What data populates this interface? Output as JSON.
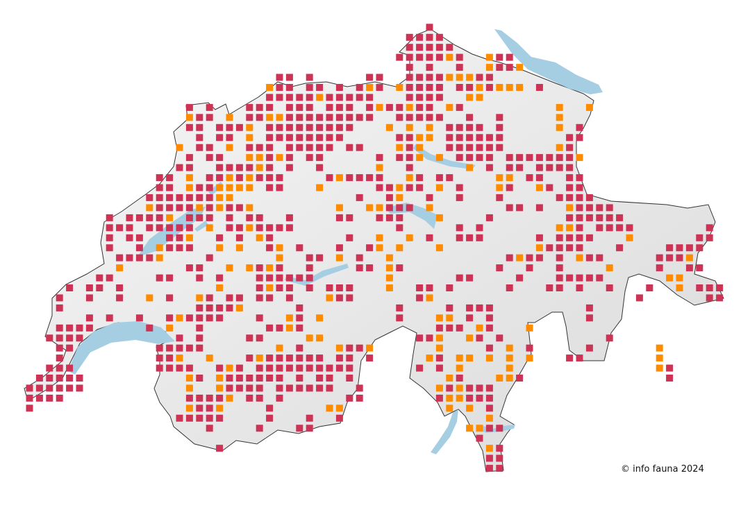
{
  "credit": "© info fauna 2024",
  "colors": {
    "red_square": "#cc3355",
    "orange_square": "#ff8c00",
    "lake": "#a6cee3",
    "country_fill": "#ececec",
    "border": "#333333"
  },
  "occurrence_grid": {
    "rows": [
      {
        "red": [
          40
        ],
        "orange": []
      },
      {
        "red": [
          38,
          39,
          40,
          41
        ],
        "orange": []
      },
      {
        "red": [
          38,
          39,
          40,
          41,
          42
        ],
        "orange": []
      },
      {
        "red": [
          37,
          38,
          39,
          40,
          41,
          43,
          47,
          48
        ],
        "orange": [
          42,
          46
        ]
      },
      {
        "red": [
          38,
          40,
          43,
          47,
          48
        ],
        "orange": [
          46,
          49
        ]
      },
      {
        "red": [
          25,
          26,
          28,
          34,
          35,
          38,
          39,
          40,
          41,
          45,
          46
        ],
        "orange": [
          42,
          43,
          44
        ]
      },
      {
        "red": [
          25,
          26,
          28,
          29,
          31,
          33,
          35,
          38,
          39,
          40,
          41,
          43,
          44,
          46,
          51
        ],
        "orange": [
          24,
          34,
          37,
          45,
          47,
          48,
          49
        ]
      },
      {
        "red": [
          24,
          25,
          26,
          27,
          28,
          30,
          31,
          32,
          33,
          34,
          38,
          39,
          40,
          41
        ],
        "orange": [
          29,
          44,
          45
        ]
      },
      {
        "red": [
          16,
          18,
          22,
          23,
          24,
          26,
          27,
          28,
          30,
          31,
          32,
          34,
          36,
          37,
          39,
          40,
          43
        ],
        "orange": [
          35,
          38,
          42,
          53,
          56
        ]
      },
      {
        "red": [
          17,
          18,
          22,
          23,
          26,
          27,
          28,
          29,
          30,
          31,
          32,
          33,
          34,
          37,
          38,
          39,
          40,
          41,
          44,
          47
        ],
        "orange": [
          16,
          20,
          24,
          25,
          53
        ]
      },
      {
        "red": [
          16,
          17,
          19,
          20,
          21,
          24,
          25,
          26,
          27,
          28,
          29,
          30,
          31,
          32,
          42,
          43,
          44,
          45,
          47,
          55
        ],
        "orange": [
          22,
          36,
          38,
          40,
          53
        ]
      },
      {
        "red": [
          17,
          19,
          20,
          24,
          25,
          26,
          27,
          28,
          29,
          30,
          31,
          37,
          38,
          42,
          43,
          44,
          45,
          46,
          47,
          54,
          55
        ],
        "orange": [
          22,
          39,
          40
        ]
      },
      {
        "red": [
          17,
          18,
          22,
          23,
          24,
          26,
          27,
          28,
          29,
          30,
          32,
          33,
          38,
          42,
          43,
          44,
          45,
          46,
          47,
          54
        ],
        "orange": [
          15,
          20,
          37,
          39,
          53
        ]
      },
      {
        "red": [
          16,
          18,
          19,
          24,
          26,
          28,
          29,
          35,
          37,
          38,
          43,
          44,
          45,
          46,
          48,
          49,
          50,
          51,
          52,
          53,
          54
        ],
        "orange": [
          22,
          23,
          25,
          39,
          41,
          55
        ]
      },
      {
        "red": [
          15,
          16,
          19,
          20,
          21,
          22,
          24,
          26,
          29,
          38,
          46,
          48,
          49,
          51,
          52,
          53,
          54
        ],
        "orange": [
          23,
          35,
          44
        ]
      },
      {
        "red": [
          13,
          14,
          18,
          19,
          21,
          23,
          24,
          25,
          30,
          32,
          33,
          34,
          35,
          39,
          41,
          42,
          50,
          51,
          54,
          55
        ],
        "orange": [
          16,
          20,
          22,
          31,
          38,
          47,
          48
        ]
      },
      {
        "red": [
          13,
          14,
          17,
          18,
          24,
          25,
          35,
          36,
          38,
          39,
          43,
          48,
          52,
          54,
          55
        ],
        "orange": [
          16,
          19,
          20,
          21,
          22,
          29,
          37,
          41,
          47,
          51
        ]
      },
      {
        "red": [
          12,
          13,
          14,
          15,
          16,
          17,
          18,
          33,
          36,
          40,
          43,
          47,
          53,
          54,
          55,
          56
        ],
        "orange": [
          19,
          20,
          37
        ]
      },
      {
        "red": [
          13,
          14,
          15,
          16,
          18,
          20,
          21,
          36,
          37,
          38,
          48,
          49,
          51,
          55,
          56,
          57,
          58
        ],
        "orange": [
          12,
          17,
          19,
          22,
          31,
          34,
          35,
          40,
          54
        ]
      },
      {
        "red": [
          8,
          10,
          11,
          12,
          13,
          16,
          17,
          18,
          20,
          22,
          23,
          26,
          31,
          32,
          35,
          36,
          37,
          46,
          54,
          55,
          56,
          57,
          58,
          59
        ],
        "orange": [
          14,
          41
        ]
      },
      {
        "red": [
          8,
          9,
          10,
          12,
          13,
          14,
          15,
          16,
          20,
          21,
          23,
          24,
          25,
          26,
          37,
          43,
          45,
          55,
          57,
          58,
          59,
          60,
          68
        ],
        "orange": [
          18,
          22,
          53,
          54
        ]
      },
      {
        "red": [
          8,
          10,
          11,
          14,
          15,
          19,
          21,
          24,
          32,
          40,
          43,
          44,
          45,
          51,
          53,
          54,
          55,
          56,
          67,
          68
        ],
        "orange": [
          16,
          23,
          35,
          38,
          60
        ]
      },
      {
        "red": [
          8,
          11,
          14,
          15,
          16,
          24,
          27,
          31,
          34,
          52,
          53,
          54,
          55,
          59,
          64,
          65,
          66,
          67
        ],
        "orange": [
          13,
          19,
          21,
          25,
          35,
          37,
          41,
          51
        ]
      },
      {
        "red": [
          9,
          10,
          11,
          12,
          18,
          28,
          29,
          33,
          48,
          50,
          51,
          53,
          56,
          57,
          63,
          64,
          65
        ],
        "orange": [
          13,
          25,
          31,
          36,
          49,
          55,
          66
        ]
      },
      {
        "red": [
          16,
          17,
          23,
          25,
          28,
          33,
          34,
          37,
          47,
          50,
          53,
          63,
          66,
          67
        ],
        "orange": [
          9,
          20,
          22,
          24,
          36,
          58
        ]
      },
      {
        "red": [
          7,
          8,
          13,
          14,
          17,
          19,
          23,
          24,
          25,
          26,
          27,
          28,
          43,
          44,
          49,
          53,
          54,
          55,
          56,
          57
        ],
        "orange": [
          36,
          64,
          65
        ]
      },
      {
        "red": [
          4,
          6,
          7,
          9,
          23,
          25,
          26,
          28,
          30,
          31,
          32,
          39,
          40,
          42,
          48,
          52,
          53,
          55,
          58,
          62,
          67,
          68,
          69
        ],
        "orange": [
          19,
          24,
          36,
          65
        ]
      },
      {
        "red": [
          3,
          6,
          9,
          14,
          18,
          20,
          21,
          23,
          24,
          26,
          31,
          32,
          39,
          61,
          68,
          69
        ],
        "orange": [
          12,
          17,
          30,
          40
        ]
      },
      {
        "red": [
          3,
          17,
          18,
          19,
          20,
          27,
          37,
          42,
          44,
          45,
          46,
          56
        ],
        "orange": [
          21
        ]
      },
      {
        "red": [
          6,
          8,
          11,
          14,
          16,
          17,
          18,
          19,
          23,
          27,
          37,
          44,
          46,
          56
        ],
        "orange": [
          15,
          26,
          29,
          41,
          42
        ]
      },
      {
        "red": [
          3,
          4,
          5,
          6,
          12,
          17,
          24,
          25,
          27,
          41,
          42,
          43,
          46
        ],
        "orange": [
          14,
          26,
          45,
          50
        ]
      },
      {
        "red": [
          2,
          3,
          4,
          5,
          15,
          17,
          22,
          23,
          39,
          40,
          45,
          47,
          58
        ],
        "orange": [
          28,
          29,
          41,
          44
        ]
      },
      {
        "red": [
          3,
          4,
          13,
          14,
          15,
          16,
          17,
          27,
          32,
          33,
          46,
          50,
          56
        ],
        "orange": [
          25,
          31,
          34,
          41,
          48,
          63
        ]
      },
      {
        "red": [
          3,
          13,
          14,
          22,
          24,
          25,
          26,
          27,
          28,
          29,
          31,
          32,
          34,
          41,
          54,
          55
        ],
        "orange": [
          15,
          18,
          23,
          40,
          43,
          44,
          46,
          48,
          50,
          63
        ]
      },
      {
        "red": [
          2,
          3,
          4,
          13,
          14,
          15,
          16,
          19,
          21,
          23,
          24,
          25,
          26,
          27,
          28,
          29,
          30,
          31,
          32,
          39,
          41,
          64
        ],
        "orange": [
          20,
          43,
          48,
          63
        ]
      },
      {
        "red": [
          1,
          2,
          3,
          4,
          5,
          17,
          20,
          21,
          22,
          23,
          24,
          25,
          27,
          29,
          30,
          32,
          43,
          49,
          64
        ],
        "orange": [
          16,
          19,
          42,
          47,
          48
        ]
      },
      {
        "red": [
          0,
          1,
          2,
          3,
          4,
          5,
          20,
          21,
          22,
          23,
          25,
          26,
          27,
          28,
          29,
          30,
          33,
          42,
          44,
          45,
          46
        ],
        "orange": [
          16,
          19,
          41,
          43
        ]
      },
      {
        "red": [
          0,
          1,
          2,
          3,
          16,
          17,
          18,
          19,
          22,
          23,
          25,
          32,
          33,
          41,
          44,
          45,
          46
        ],
        "orange": [
          20,
          42,
          43
        ]
      },
      {
        "red": [
          0,
          17,
          18,
          24,
          46
        ],
        "orange": [
          16,
          19,
          30,
          31,
          42,
          44
        ]
      },
      {
        "red": [
          15,
          16,
          17,
          18,
          19,
          24,
          28,
          31
        ],
        "orange": [
          46
        ]
      },
      {
        "red": [
          18,
          23,
          27,
          28,
          46,
          47
        ],
        "orange": [
          44,
          45
        ]
      },
      {
        "red": [
          45
        ],
        "orange": []
      },
      {
        "red": [
          19,
          47
        ],
        "orange": [
          46
        ]
      },
      {
        "red": [
          46,
          47
        ],
        "orange": []
      },
      {
        "red": [
          46,
          47
        ],
        "orange": []
      }
    ]
  }
}
